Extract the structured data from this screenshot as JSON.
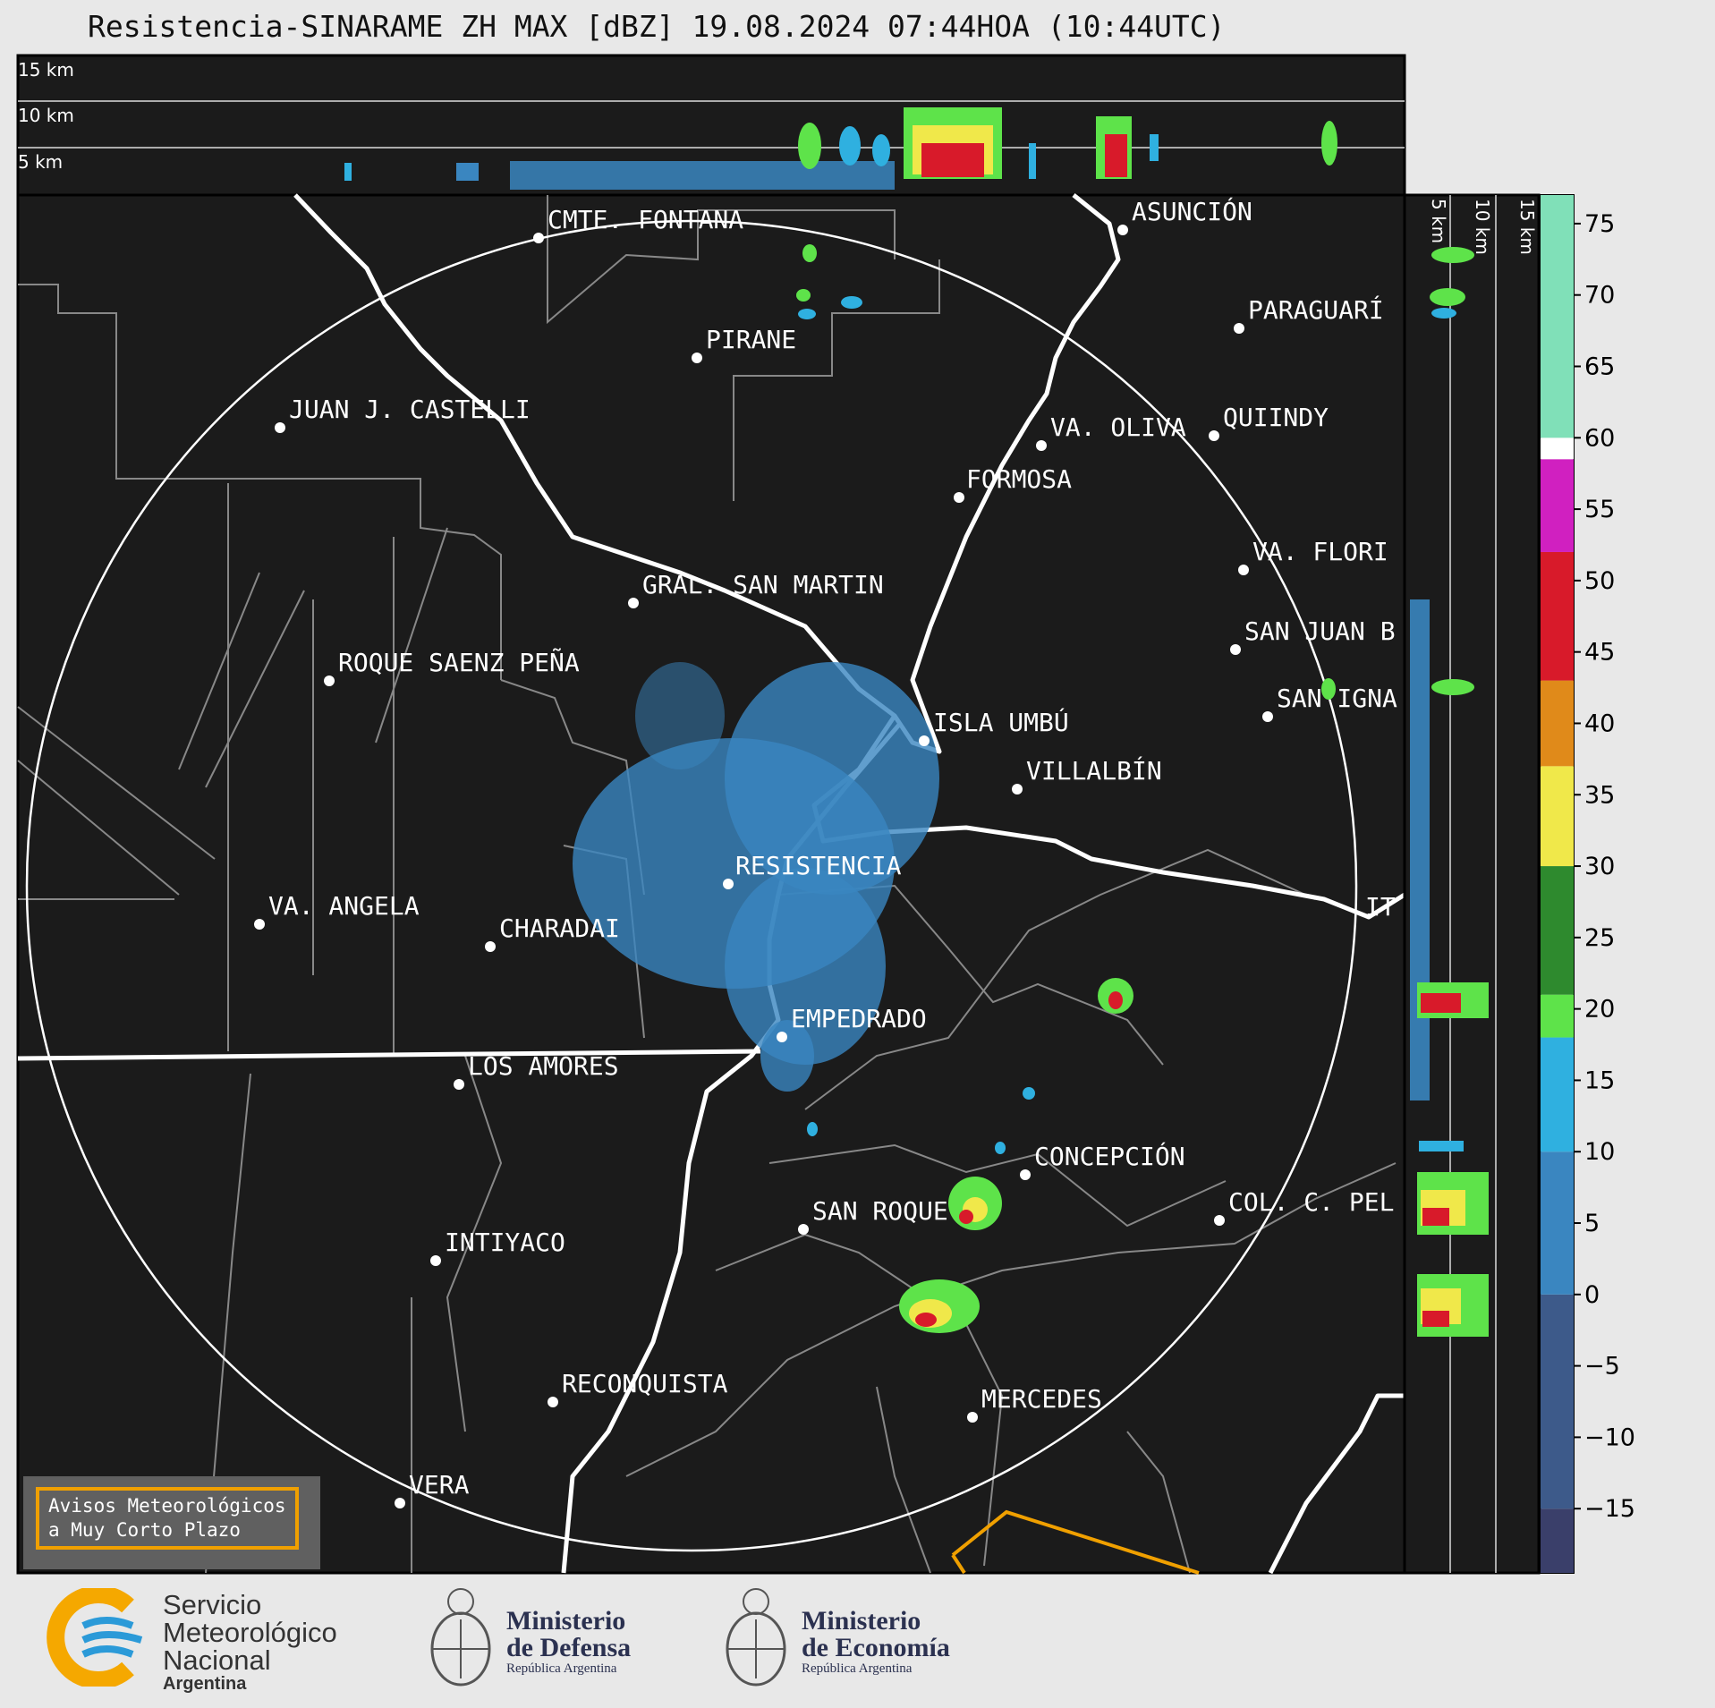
{
  "title": "Resistencia-SINARAME ZH MAX [dBZ] 19.08.2024 07:44HOA (10:44UTC)",
  "top_panel": {
    "height_labels": [
      "15 km",
      "10 km",
      "5 km"
    ]
  },
  "side_panel": {
    "height_labels": [
      "5 km",
      "10 km",
      "15 km"
    ]
  },
  "cities": [
    {
      "name": "CMTE. FONTANA"
    },
    {
      "name": "ASUNCIÓN"
    },
    {
      "name": "PIRANE"
    },
    {
      "name": "PARAGUARÍ"
    },
    {
      "name": "JUAN J. CASTELLI"
    },
    {
      "name": "VA. OLIVA"
    },
    {
      "name": "QUIINDY"
    },
    {
      "name": "FORMOSA"
    },
    {
      "name": "VA. FLORI"
    },
    {
      "name": "GRAL. SAN MARTIN"
    },
    {
      "name": "SAN JUAN B"
    },
    {
      "name": "ROQUE SAENZ PEÑA"
    },
    {
      "name": "SAN IGNA"
    },
    {
      "name": "ISLA UMBÚ"
    },
    {
      "name": "VILLALBÍN"
    },
    {
      "name": "RESISTENCIA"
    },
    {
      "name": "VA. ANGELA"
    },
    {
      "name": "CHARADAI"
    },
    {
      "name": "IT"
    },
    {
      "name": "EMPEDRADO"
    },
    {
      "name": "LOS AMORES"
    },
    {
      "name": "CONCEPCIÓN"
    },
    {
      "name": "SAN ROQUE"
    },
    {
      "name": "COL. C. PEL"
    },
    {
      "name": "INTIYACO"
    },
    {
      "name": "RECONQUISTA"
    },
    {
      "name": "MERCEDES"
    },
    {
      "name": "VERA"
    }
  ],
  "colorbar": {
    "unit": "dBZ",
    "ticks": [
      "75",
      "70",
      "65",
      "60",
      "55",
      "50",
      "45",
      "40",
      "35",
      "30",
      "25",
      "20",
      "15",
      "10",
      "5",
      "0",
      "−5",
      "−10",
      "−15"
    ],
    "colors": {
      "low": "#3a3f6a",
      "blue": "#3a86c0",
      "cyan": "#2fb0e0",
      "green": "#2e8a2e",
      "lime": "#5ee34a",
      "yellow": "#f0e84a",
      "orange": "#e08a1a",
      "red": "#d81a2a",
      "magenta": "#d020c0",
      "white": "#ffffff",
      "mint": "#80e0b8"
    }
  },
  "warning_box": {
    "line1": "Avisos Meteorológicos",
    "line2": "a Muy Corto Plazo"
  },
  "logos": {
    "smn": {
      "line1": "Servicio",
      "line2": "Meteorológico",
      "line3": "Nacional",
      "line4": "Argentina"
    },
    "defensa": {
      "line1": "Ministerio",
      "line2": "de Defensa",
      "line3": "República Argentina"
    },
    "economia": {
      "line1": "Ministerio",
      "line2": "de Economía",
      "line3": "República Argentina"
    }
  }
}
